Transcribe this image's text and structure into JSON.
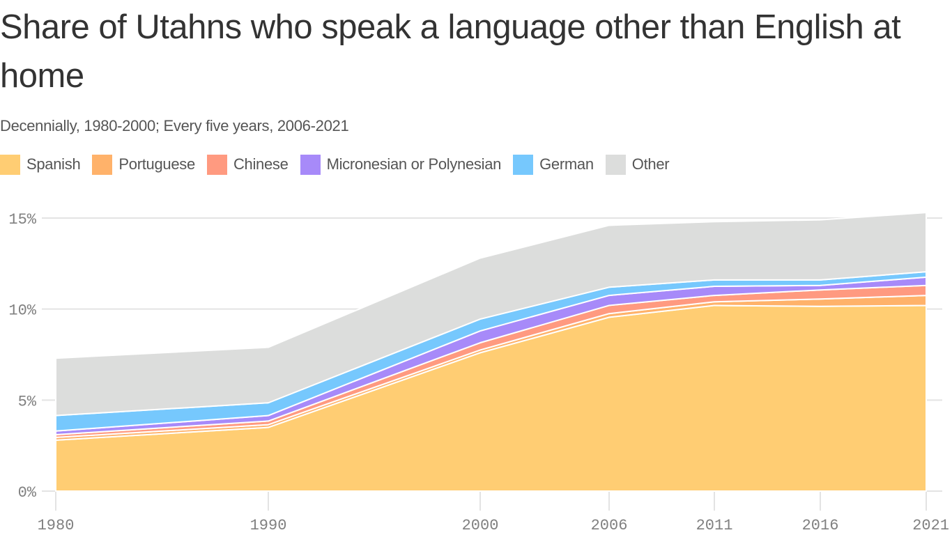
{
  "header": {
    "title": "Share of Utahns who speak a language other than English at home",
    "subtitle": "Decennially, 1980-2000; Every five years, 2006-2021"
  },
  "legend": [
    {
      "label": "Spanish",
      "color": "#FFCD73"
    },
    {
      "label": "Portuguese",
      "color": "#FFB26A"
    },
    {
      "label": "Chinese",
      "color": "#FF9A80"
    },
    {
      "label": "Micronesian or Polynesian",
      "color": "#A78AF9"
    },
    {
      "label": "German",
      "color": "#76C8FD"
    },
    {
      "label": "Other",
      "color": "#DCDDDC"
    }
  ],
  "axes": {
    "y_ticks": [
      "0%",
      "5%",
      "10%",
      "15%"
    ],
    "x_ticks": [
      "1980",
      "1990",
      "2000",
      "2006",
      "2011",
      "2016",
      "2021"
    ]
  },
  "chart_data": {
    "type": "area",
    "stacked": true,
    "title": "Share of Utahns who speak a language other than English at home",
    "subtitle": "Decennially, 1980-2000; Every five years, 2006-2021",
    "xlabel": "",
    "ylabel": "",
    "x": [
      1980,
      1990,
      2000,
      2006,
      2011,
      2016,
      2021
    ],
    "ylim": [
      0,
      15
    ],
    "y_unit": "%",
    "grid": true,
    "legend_position": "top",
    "series": [
      {
        "name": "Spanish",
        "color": "#FFCD73",
        "values": [
          2.8,
          3.5,
          7.6,
          9.55,
          10.2,
          10.15,
          10.2
        ]
      },
      {
        "name": "Portuguese",
        "color": "#FFB26A",
        "values": [
          0.15,
          0.15,
          0.15,
          0.2,
          0.2,
          0.4,
          0.55
        ]
      },
      {
        "name": "Chinese",
        "color": "#FF9A80",
        "values": [
          0.15,
          0.2,
          0.4,
          0.45,
          0.35,
          0.5,
          0.55
        ]
      },
      {
        "name": "Micronesian or Polynesian",
        "color": "#A78AF9",
        "values": [
          0.2,
          0.3,
          0.65,
          0.55,
          0.5,
          0.25,
          0.45
        ]
      },
      {
        "name": "German",
        "color": "#76C8FD",
        "values": [
          0.85,
          0.7,
          0.65,
          0.45,
          0.35,
          0.3,
          0.3
        ]
      },
      {
        "name": "Other",
        "color": "#DCDDDC",
        "values": [
          3.15,
          3.05,
          3.35,
          3.4,
          3.2,
          3.3,
          3.25
        ]
      }
    ]
  }
}
